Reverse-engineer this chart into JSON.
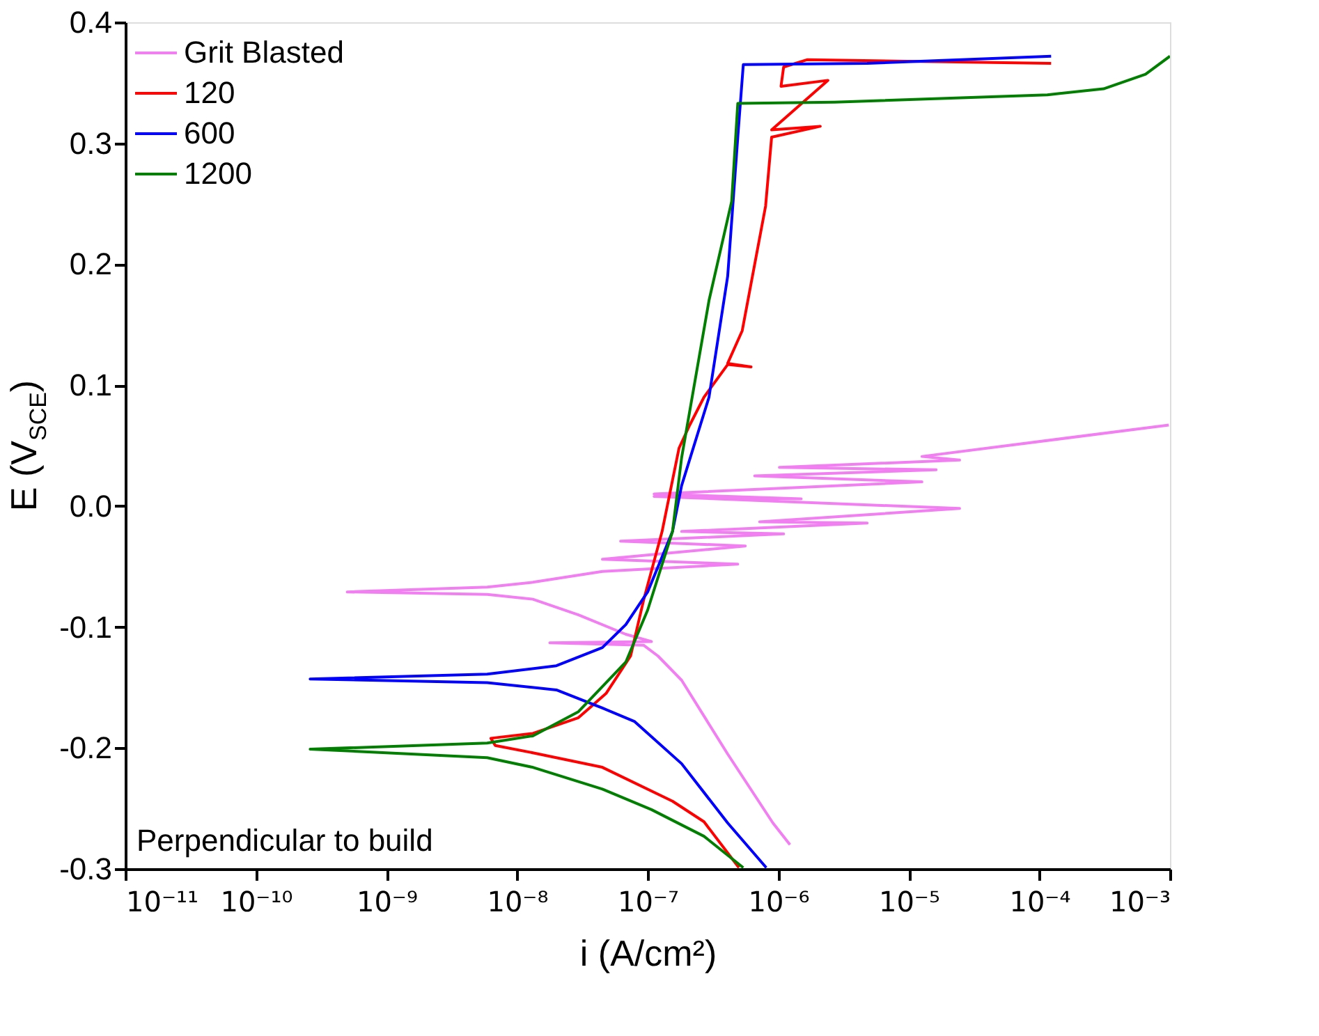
{
  "chart_data": {
    "type": "line",
    "xlabel": "i (A/cm²)",
    "ylabel": "E (V$_{SCE}$)",
    "log": "x",
    "xlim": [
      1e-11,
      0.001
    ],
    "xticks": [
      {
        "value": 1e-11,
        "label": "10⁻¹¹"
      },
      {
        "value": 1e-10,
        "label": "10⁻¹⁰"
      },
      {
        "value": 1e-09,
        "label": "10⁻⁹"
      },
      {
        "value": 1e-08,
        "label": "10⁻⁸"
      },
      {
        "value": 1e-07,
        "label": "10⁻⁷"
      },
      {
        "value": 1e-06,
        "label": "10⁻⁶"
      },
      {
        "value": 1e-05,
        "label": "10⁻⁵"
      },
      {
        "value": 0.0001,
        "label": "10⁻⁴"
      },
      {
        "value": 0.001,
        "label": "10⁻³"
      }
    ],
    "ylim": [
      -0.3,
      0.4
    ],
    "yticks": [
      -0.3,
      -0.2,
      -0.1,
      {
        "value": 0,
        "label": "0.0"
      },
      0.1,
      0.2,
      0.3,
      0.4
    ],
    "grid": false,
    "legend": "top left",
    "line_style": "solid",
    "marker": "none",
    "annotations": [
      "Perpendicular to build"
    ],
    "series": [
      {
        "name": "Grit Blasted",
        "color": "#f27ff2",
        "x": [
          1.23e-06,
          9.1e-07,
          4.1e-07,
          1.82e-07,
          1.2e-07,
          9.3e-08,
          1.78e-08,
          1.07e-07,
          6.8e-08,
          2.95e-08,
          1.32e-08,
          5.9e-09,
          5e-10,
          5.9e-09,
          1.32e-08,
          2e-08,
          4.5e-08,
          4.9e-07,
          4.5e-08,
          5.6e-07,
          6.2e-08,
          1.1e-06,
          1.82e-07,
          4.8e-06,
          7.2e-07,
          2.45e-05,
          1.12e-07,
          1.5e-06,
          1.12e-07,
          1.26e-05,
          6.6e-07,
          1.62e-05,
          1.02e-06,
          2.45e-05,
          1.26e-05,
          0.00098
        ],
        "values": [
          -0.28,
          -0.262,
          -0.205,
          -0.144,
          -0.124,
          -0.115,
          -0.113,
          -0.112,
          -0.106,
          -0.09,
          -0.077,
          -0.073,
          -0.071,
          -0.067,
          -0.063,
          -0.06,
          -0.054,
          -0.048,
          -0.044,
          -0.033,
          -0.029,
          -0.023,
          -0.021,
          -0.014,
          -0.013,
          -0.002,
          0.008,
          0.006,
          0.01,
          0.02,
          0.025,
          0.03,
          0.032,
          0.038,
          0.041,
          0.067
        ]
      },
      {
        "name": "120",
        "color": "#ff0000",
        "x": [
          5e-07,
          2.7e-07,
          1.55e-07,
          4.5e-08,
          1.32e-08,
          6.8e-09,
          6.3e-09,
          1.32e-08,
          2.95e-08,
          4.8e-08,
          7.4e-08,
          9.3e-08,
          1.29e-07,
          1.74e-07,
          2.1e-07,
          2.7e-07,
          4.1e-07,
          6.2e-07,
          4.1e-07,
          5.3e-07,
          8e-07,
          8.9e-07,
          2.1e-06,
          8.9e-07,
          2.4e-06,
          1.05e-06,
          1.1e-06,
          1.66e-06,
          0.000123
        ],
        "values": [
          -0.299,
          -0.261,
          -0.244,
          -0.216,
          -0.204,
          -0.198,
          -0.192,
          -0.188,
          -0.175,
          -0.155,
          -0.124,
          -0.078,
          -0.021,
          0.048,
          0.067,
          0.09,
          0.117,
          0.115,
          0.118,
          0.145,
          0.248,
          0.305,
          0.314,
          0.311,
          0.352,
          0.347,
          0.363,
          0.369,
          0.366
        ]
      },
      {
        "name": "600",
        "color": "#0000ff",
        "x": [
          8.1e-07,
          4.1e-07,
          1.82e-07,
          7.9e-08,
          4.5e-08,
          2e-08,
          5.9e-09,
          2.6e-10,
          5.9e-09,
          2e-08,
          4.5e-08,
          6.8e-08,
          1e-07,
          1.55e-07,
          1.82e-07,
          2.95e-07,
          4.1e-07,
          4.9e-07,
          5.4e-07,
          4.8e-06,
          0.000123
        ],
        "values": [
          -0.299,
          -0.262,
          -0.213,
          -0.178,
          -0.167,
          -0.152,
          -0.146,
          -0.143,
          -0.139,
          -0.132,
          -0.117,
          -0.098,
          -0.071,
          -0.021,
          0.017,
          0.09,
          0.19,
          0.305,
          0.365,
          0.366,
          0.372
        ]
      },
      {
        "name": "1200",
        "color": "#007f00",
        "x": [
          5.4e-07,
          2.7e-07,
          1.07e-07,
          4.5e-08,
          1.32e-08,
          5.9e-09,
          2.6e-10,
          5.9e-09,
          1.32e-08,
          2.95e-08,
          6.8e-08,
          1e-07,
          1.55e-07,
          1.82e-07,
          2.95e-07,
          4.4e-07,
          4.9e-07,
          2.7e-06,
          0.000115,
          0.00031,
          0.00065,
          0.001
        ],
        "values": [
          -0.299,
          -0.273,
          -0.251,
          -0.234,
          -0.216,
          -0.208,
          -0.201,
          -0.196,
          -0.19,
          -0.17,
          -0.129,
          -0.086,
          -0.021,
          0.04,
          0.17,
          0.252,
          0.333,
          0.334,
          0.34,
          0.345,
          0.357,
          0.372
        ]
      }
    ]
  }
}
